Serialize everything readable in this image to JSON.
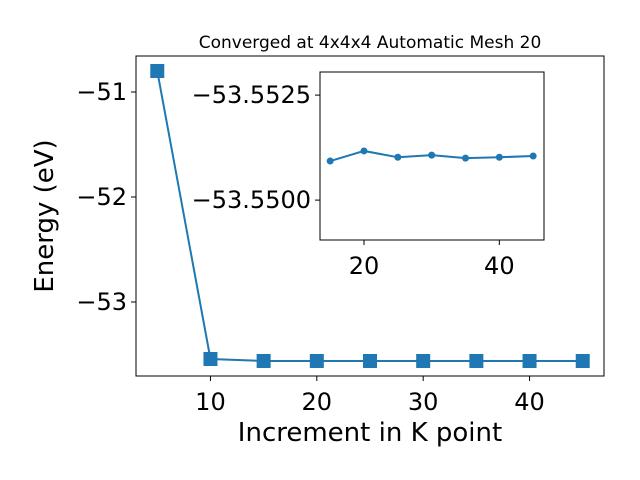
{
  "chart_data": [
    {
      "type": "line",
      "title": "Converged at 4x4x4 Automatic Mesh 20",
      "xlabel": "Increment in K point",
      "ylabel": "Energy (eV)",
      "x": [
        5,
        10,
        15,
        20,
        25,
        30,
        35,
        40,
        45
      ],
      "series": [
        {
          "color": "#1f77b4",
          "marker": "square",
          "values": [
            -50.8,
            -53.543,
            -53.562,
            -53.562,
            -53.562,
            -53.562,
            -53.562,
            -53.562,
            -53.562
          ]
        }
      ],
      "xlim": [
        3,
        47
      ],
      "xticks": [
        10,
        20,
        30,
        40
      ],
      "ylim": [
        -53.705,
        -50.657
      ],
      "yticks": [
        {
          "value": -53,
          "label": "−53"
        },
        {
          "value": -52,
          "label": "−52"
        },
        {
          "value": -51,
          "label": "−51"
        }
      ]
    },
    {
      "type": "line",
      "x": [
        15,
        20,
        25,
        30,
        35,
        40,
        45
      ],
      "series": [
        {
          "color": "#1f77b4",
          "marker": "circle",
          "values": [
            -53.55093,
            -53.55117,
            -53.55102,
            -53.55107,
            -53.551,
            -53.55102,
            -53.55105
          ]
        }
      ],
      "xlim": [
        13.5,
        46.6
      ],
      "xticks": [
        20,
        40
      ],
      "ylim": [
        -53.54905,
        -53.55305
      ],
      "yticks": [
        {
          "value": -53.55,
          "label": "−53.5500"
        },
        {
          "value": -53.5525,
          "label": "−53.5525"
        }
      ]
    }
  ]
}
